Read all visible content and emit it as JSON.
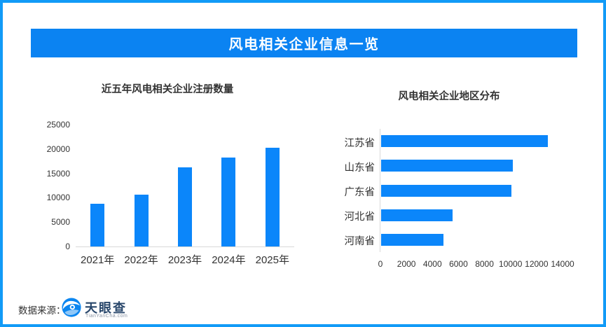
{
  "banner": {
    "title": "风电相关企业信息一览"
  },
  "footer": {
    "source_label": "数据来源：",
    "brand_name": "天眼查",
    "brand_domain": "TianYanCha.com"
  },
  "colors": {
    "banner_blue": "#0b83f2",
    "bar_blue": "#0b86fa",
    "border_blue": "#129bf7",
    "axis_gray": "#d9d9d9",
    "text_dark": "#333333",
    "brand_navy": "#29476b"
  },
  "chart_data": [
    {
      "type": "bar",
      "orientation": "vertical",
      "title": "近五年风电相关企业注册数量",
      "categories": [
        "2021年",
        "2022年",
        "2023年",
        "2024年",
        "2025年"
      ],
      "values": [
        8700,
        10700,
        16200,
        18200,
        20200
      ],
      "xlabel": "",
      "ylabel": "",
      "ylim": [
        0,
        25000
      ],
      "yticks": [
        0,
        5000,
        10000,
        15000,
        20000,
        25000
      ],
      "grid": false,
      "legend": false
    },
    {
      "type": "bar",
      "orientation": "horizontal",
      "title": "风电相关企业地区分布",
      "categories": [
        "江苏省",
        "山东省",
        "广东省",
        "河北省",
        "河南省"
      ],
      "values": [
        12800,
        10100,
        10000,
        5500,
        4800
      ],
      "xlabel": "",
      "ylabel": "",
      "xlim": [
        0,
        14000
      ],
      "xticks": [
        0,
        2000,
        4000,
        6000,
        8000,
        10000,
        12000,
        14000
      ],
      "grid": false,
      "legend": false
    }
  ]
}
